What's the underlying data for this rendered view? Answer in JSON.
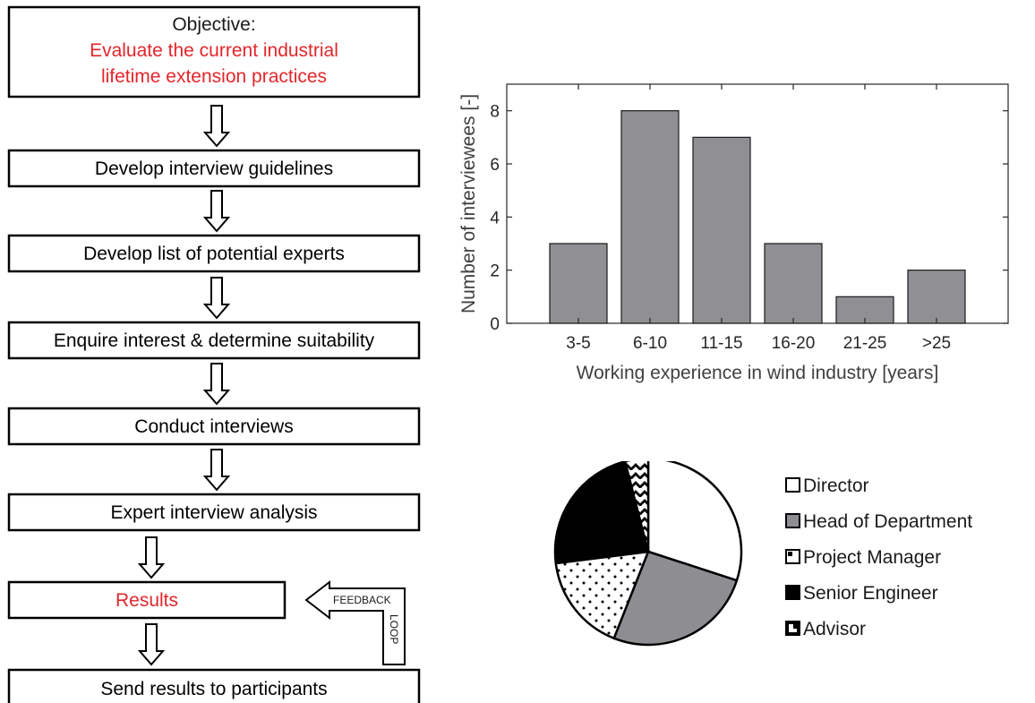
{
  "flowchart": {
    "objective_label": "Objective:",
    "objective_lines": [
      "Evaluate the current industrial",
      "lifetime extension practices"
    ],
    "steps": [
      "Develop interview guidelines",
      "Develop list of potential experts",
      "Enquire interest & determine suitability",
      "Conduct interviews",
      "Expert interview analysis",
      "Results",
      "Send results to participants"
    ],
    "feedback_label": "FEEDBACK",
    "loop_label": "LOOP",
    "highlight_color": "#e3262b"
  },
  "chart_data": [
    {
      "type": "bar",
      "categories": [
        "3-5",
        "6-10",
        "11-15",
        "16-20",
        "21-25",
        ">25"
      ],
      "values": [
        3,
        8,
        7,
        3,
        1,
        2
      ],
      "xlabel": "Working experience in wind industry [years]",
      "ylabel": "Number of interviewees [-]",
      "ylim": [
        0,
        9
      ],
      "yticks": [
        0,
        2,
        4,
        6,
        8
      ],
      "bar_color": "#909094",
      "grid": false
    },
    {
      "type": "pie",
      "labels": [
        "Director",
        "Head of Department",
        "Project Manager",
        "Senior Engineer",
        "Advisor"
      ],
      "values": [
        30,
        26,
        17,
        23,
        4
      ],
      "fills": [
        "white",
        "gray",
        "dots",
        "black",
        "zigzag"
      ],
      "legend_position": "right"
    }
  ]
}
